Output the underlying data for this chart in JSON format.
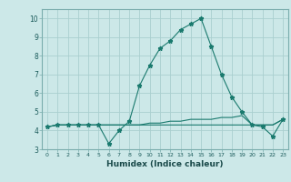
{
  "xlabel": "Humidex (Indice chaleur)",
  "x_values": [
    0,
    1,
    2,
    3,
    4,
    5,
    6,
    7,
    8,
    9,
    10,
    11,
    12,
    13,
    14,
    15,
    16,
    17,
    18,
    19,
    20,
    21,
    22,
    23
  ],
  "line1_y": [
    4.2,
    4.3,
    4.3,
    4.3,
    4.3,
    4.3,
    3.3,
    4.0,
    4.5,
    6.4,
    7.5,
    8.4,
    8.8,
    9.4,
    9.7,
    10.0,
    8.5,
    7.0,
    5.8,
    5.0,
    4.3,
    4.2,
    3.7,
    4.6
  ],
  "line2_y": [
    4.2,
    4.3,
    4.3,
    4.3,
    4.3,
    4.3,
    4.3,
    4.3,
    4.3,
    4.3,
    4.4,
    4.4,
    4.5,
    4.5,
    4.6,
    4.6,
    4.6,
    4.7,
    4.7,
    4.8,
    4.3,
    4.3,
    4.3,
    4.6
  ],
  "line3_y": [
    4.2,
    4.3,
    4.3,
    4.3,
    4.3,
    4.3,
    4.3,
    4.3,
    4.3,
    4.3,
    4.3,
    4.3,
    4.3,
    4.3,
    4.3,
    4.3,
    4.3,
    4.3,
    4.3,
    4.3,
    4.3,
    4.3,
    4.3,
    4.6
  ],
  "line_color": "#1a7a6e",
  "bg_color": "#cce8e8",
  "grid_color": "#aacfcf",
  "ylim": [
    3.0,
    10.5
  ],
  "xlim": [
    -0.5,
    23.5
  ],
  "yticks": [
    3,
    4,
    5,
    6,
    7,
    8,
    9,
    10
  ],
  "xticks": [
    0,
    1,
    2,
    3,
    4,
    5,
    6,
    7,
    8,
    9,
    10,
    11,
    12,
    13,
    14,
    15,
    16,
    17,
    18,
    19,
    20,
    21,
    22,
    23
  ]
}
